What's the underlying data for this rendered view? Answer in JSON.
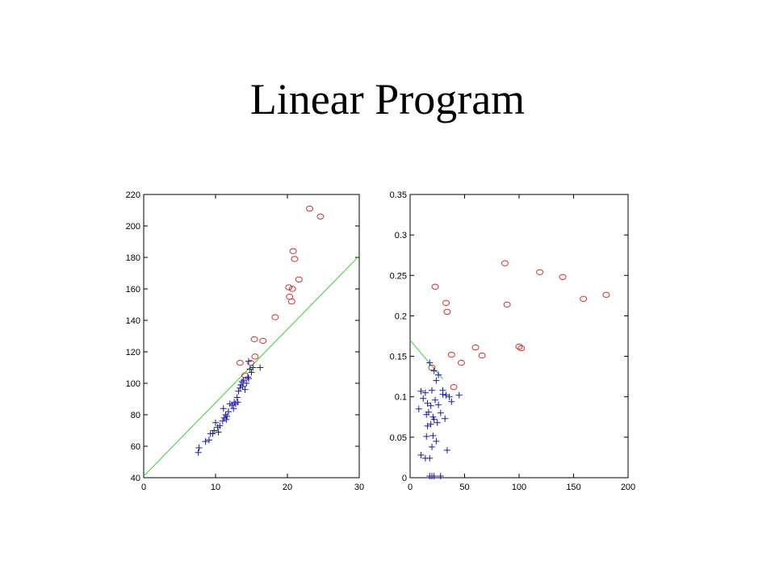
{
  "title": "Linear Program",
  "chart_data": [
    {
      "type": "scatter",
      "title": "",
      "xlabel": "",
      "ylabel": "",
      "xlim": [
        0,
        30
      ],
      "ylim": [
        40,
        220
      ],
      "xticks": [
        0,
        10,
        20,
        30
      ],
      "yticks": [
        40,
        60,
        80,
        100,
        120,
        140,
        160,
        180,
        200,
        220
      ],
      "xtick_labels": [
        "0",
        "10",
        "20",
        "30"
      ],
      "ytick_labels": [
        "40",
        "60",
        "80",
        "100",
        "120",
        "140",
        "160",
        "180",
        "200",
        "220"
      ],
      "grid": false,
      "colors": {
        "circles": "#cc3333",
        "plus": "#1a1aa0",
        "line": "#33cc33",
        "frame": "#000000"
      },
      "line": {
        "x": [
          0,
          30
        ],
        "y": [
          41,
          181
        ]
      },
      "series": [
        {
          "marker": "circle",
          "points": [
            [
              23.1,
              211
            ],
            [
              24.6,
              206
            ],
            [
              20.8,
              184
            ],
            [
              21.0,
              179
            ],
            [
              21.6,
              166
            ],
            [
              20.2,
              161
            ],
            [
              20.7,
              160
            ],
            [
              20.3,
              155
            ],
            [
              20.6,
              152
            ],
            [
              18.3,
              142
            ],
            [
              15.4,
              128
            ],
            [
              16.6,
              127
            ],
            [
              15.5,
              117
            ],
            [
              13.4,
              113
            ],
            [
              14.9,
              113
            ],
            [
              14.1,
              105
            ]
          ]
        },
        {
          "marker": "plus",
          "points": [
            [
              7.6,
              56
            ],
            [
              7.7,
              59
            ],
            [
              8.6,
              63
            ],
            [
              9.1,
              64
            ],
            [
              9.3,
              68
            ],
            [
              9.6,
              68
            ],
            [
              9.8,
              70
            ],
            [
              10.0,
              75
            ],
            [
              10.3,
              72
            ],
            [
              10.4,
              69
            ],
            [
              10.6,
              73
            ],
            [
              11.0,
              76
            ],
            [
              11.1,
              84
            ],
            [
              11.2,
              78
            ],
            [
              11.4,
              80
            ],
            [
              11.6,
              79
            ],
            [
              11.8,
              82
            ],
            [
              12.0,
              87
            ],
            [
              12.3,
              86
            ],
            [
              12.6,
              88
            ],
            [
              12.8,
              87
            ],
            [
              13.0,
              91
            ],
            [
              13.2,
              95
            ],
            [
              13.4,
              97
            ],
            [
              13.5,
              99
            ],
            [
              13.7,
              101
            ],
            [
              13.8,
              98
            ],
            [
              13.9,
              102
            ],
            [
              14.1,
              96
            ],
            [
              14.3,
              100
            ],
            [
              14.5,
              104
            ],
            [
              14.6,
              103
            ],
            [
              14.8,
              109
            ],
            [
              15.0,
              107
            ],
            [
              15.2,
              110
            ],
            [
              14.6,
              114
            ],
            [
              16.2,
              110
            ],
            [
              13.1,
              88
            ],
            [
              12.5,
              84
            ],
            [
              11.5,
              77
            ]
          ]
        }
      ]
    },
    {
      "type": "scatter",
      "title": "",
      "xlabel": "",
      "ylabel": "",
      "xlim": [
        0,
        200
      ],
      "ylim": [
        0,
        0.35
      ],
      "xticks": [
        0,
        50,
        100,
        150,
        200
      ],
      "yticks": [
        0,
        0.05,
        0.1,
        0.15,
        0.2,
        0.25,
        0.3,
        0.35
      ],
      "xtick_labels": [
        "0",
        "50",
        "100",
        "150",
        "200"
      ],
      "ytick_labels": [
        "0",
        "0.05",
        "0.1",
        "0.15",
        "0.2",
        "0.25",
        "0.3",
        "0.35"
      ],
      "grid": false,
      "colors": {
        "circles": "#cc3333",
        "plus": "#1a1aa0",
        "line": "#33cc33",
        "frame": "#000000"
      },
      "line": {
        "x": [
          0,
          30
        ],
        "y": [
          0.17,
          0.122
        ]
      },
      "series": [
        {
          "marker": "circle",
          "points": [
            [
              23,
              0.236
            ],
            [
              33,
              0.216
            ],
            [
              34,
              0.205
            ],
            [
              38,
              0.152
            ],
            [
              40,
              0.112
            ],
            [
              47,
              0.142
            ],
            [
              60,
              0.161
            ],
            [
              66,
              0.151
            ],
            [
              87,
              0.265
            ],
            [
              89,
              0.214
            ],
            [
              100,
              0.162
            ],
            [
              102,
              0.16
            ],
            [
              119,
              0.254
            ],
            [
              140,
              0.248
            ],
            [
              159,
              0.221
            ],
            [
              180,
              0.226
            ],
            [
              20,
              0.136
            ]
          ]
        },
        {
          "marker": "plus",
          "points": [
            [
              8,
              0.085
            ],
            [
              10,
              0.107
            ],
            [
              12,
              0.098
            ],
            [
              14,
              0.105
            ],
            [
              15,
              0.078
            ],
            [
              16,
              0.092
            ],
            [
              17,
              0.081
            ],
            [
              18,
              0.142
            ],
            [
              19,
              0.066
            ],
            [
              20,
              0.108
            ],
            [
              21,
              0.075
            ],
            [
              22,
              0.132
            ],
            [
              23,
              0.096
            ],
            [
              24,
              0.12
            ],
            [
              25,
              0.068
            ],
            [
              26,
              0.127
            ],
            [
              28,
              0.08
            ],
            [
              30,
              0.108
            ],
            [
              32,
              0.073
            ],
            [
              33,
              0.102
            ],
            [
              34,
              0.034
            ],
            [
              36,
              0.1
            ],
            [
              38,
              0.094
            ],
            [
              45,
              0.102
            ],
            [
              10,
              0.028
            ],
            [
              14,
              0.024
            ],
            [
              18,
              0.024
            ],
            [
              15,
              0.051
            ],
            [
              20,
              0.038
            ],
            [
              22,
              0.072
            ],
            [
              24,
              0.045
            ],
            [
              18,
              0.002
            ],
            [
              20,
              0.002
            ],
            [
              22,
              0.002
            ],
            [
              28,
              0.002
            ],
            [
              26,
              0.09
            ],
            [
              30,
              0.103
            ],
            [
              16,
              0.064
            ],
            [
              19,
              0.089
            ],
            [
              21,
              0.052
            ]
          ]
        }
      ]
    }
  ]
}
